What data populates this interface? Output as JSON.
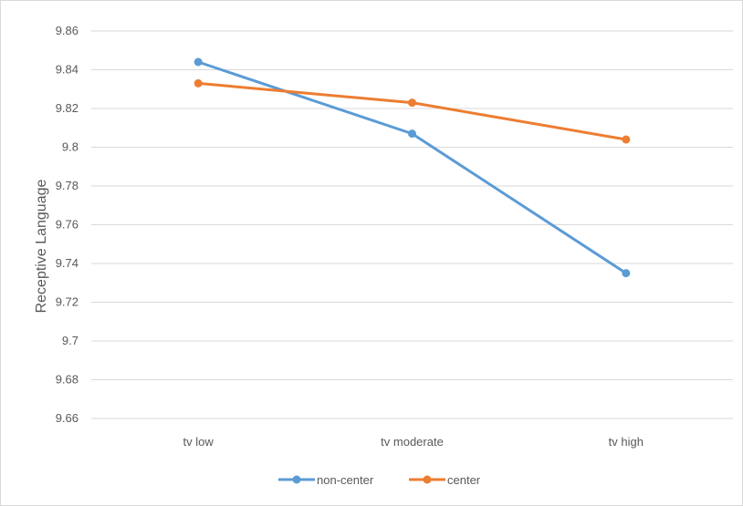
{
  "chart_data": {
    "type": "line",
    "title": "",
    "xlabel": "",
    "ylabel": "Receptive Language",
    "categories": [
      "tv low",
      "tv moderate",
      "tv high"
    ],
    "y_ticks": [
      "9.66",
      "9.68",
      "9.7",
      "9.72",
      "9.74",
      "9.76",
      "9.78",
      "9.8",
      "9.82",
      "9.84",
      "9.86"
    ],
    "ylim": [
      9.66,
      9.86
    ],
    "grid": true,
    "legend_position": "bottom",
    "series": [
      {
        "name": "non-center",
        "color": "#5b9bd5",
        "values": [
          9.844,
          9.807,
          9.735
        ]
      },
      {
        "name": "center",
        "color": "#ed7d31",
        "values": [
          9.833,
          9.823,
          9.804
        ]
      }
    ]
  }
}
